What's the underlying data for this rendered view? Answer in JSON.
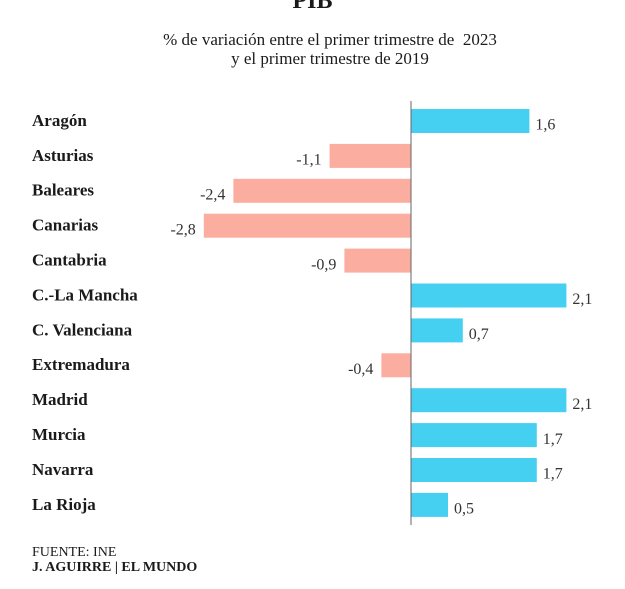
{
  "title": "PIB",
  "subtitle_line1": "% de variación entre el primer trimestre de  2023",
  "subtitle_line2": "y el primer trimestre de 2019",
  "source": "FUENTE: INE",
  "credit": "J. AGUIRRE | EL MUNDO",
  "colors": {
    "positive": "#45d0f2",
    "negative": "#fbaea0",
    "axis": "#666666",
    "text": "#1a1a1a"
  },
  "chart_data": {
    "type": "bar",
    "orientation": "horizontal",
    "categories": [
      "Aragón",
      "Asturias",
      "Baleares",
      "Canarias",
      "Cantabria",
      "C.-La Mancha",
      "C. Valenciana",
      "Extremadura",
      "Madrid",
      "Murcia",
      "Navarra",
      "La Rioja"
    ],
    "values": [
      1.6,
      -1.1,
      -2.4,
      -2.8,
      -0.9,
      2.1,
      0.7,
      -0.4,
      2.1,
      1.7,
      1.7,
      0.5
    ],
    "value_labels": [
      "1,6",
      "-1,1",
      "-2,4",
      "-2,8",
      "-0,9",
      "2,1",
      "0,7",
      "-0,4",
      "2,1",
      "1,7",
      "1,7",
      "0,5"
    ],
    "title": "PIB",
    "xlabel": "",
    "ylabel": "",
    "xlim": [
      -5.5,
      2.1
    ],
    "grid": false
  }
}
